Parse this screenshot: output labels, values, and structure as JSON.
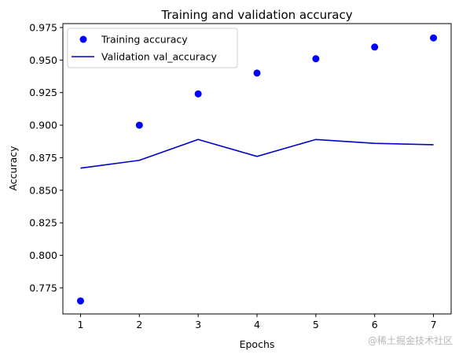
{
  "chart_data": {
    "type": "line",
    "title": "Training and validation accuracy",
    "xlabel": "Epochs",
    "ylabel": "Accuracy",
    "x": [
      1,
      2,
      3,
      4,
      5,
      6,
      7
    ],
    "xticks": [
      "1",
      "2",
      "3",
      "4",
      "5",
      "6",
      "7"
    ],
    "xlim": [
      0.7,
      7.3
    ],
    "yticks": [
      0.775,
      0.8,
      0.825,
      0.85,
      0.875,
      0.9,
      0.925,
      0.95,
      0.975
    ],
    "ytick_labels": [
      "0.775",
      "0.800",
      "0.825",
      "0.850",
      "0.875",
      "0.900",
      "0.925",
      "0.950",
      "0.975"
    ],
    "ylim": [
      0.755,
      0.978
    ],
    "grid": false,
    "legend_position": "top-left",
    "series": [
      {
        "name": "Training accuracy",
        "style": "markers",
        "color": "#0000ff",
        "values": [
          0.765,
          0.9,
          0.924,
          0.94,
          0.951,
          0.96,
          0.967
        ]
      },
      {
        "name": "Validation val_accuracy",
        "style": "line",
        "color": "#0000cd",
        "values": [
          0.867,
          0.873,
          0.889,
          0.876,
          0.889,
          0.886,
          0.885
        ]
      }
    ]
  },
  "watermark": "@稀土掘金技术社区"
}
